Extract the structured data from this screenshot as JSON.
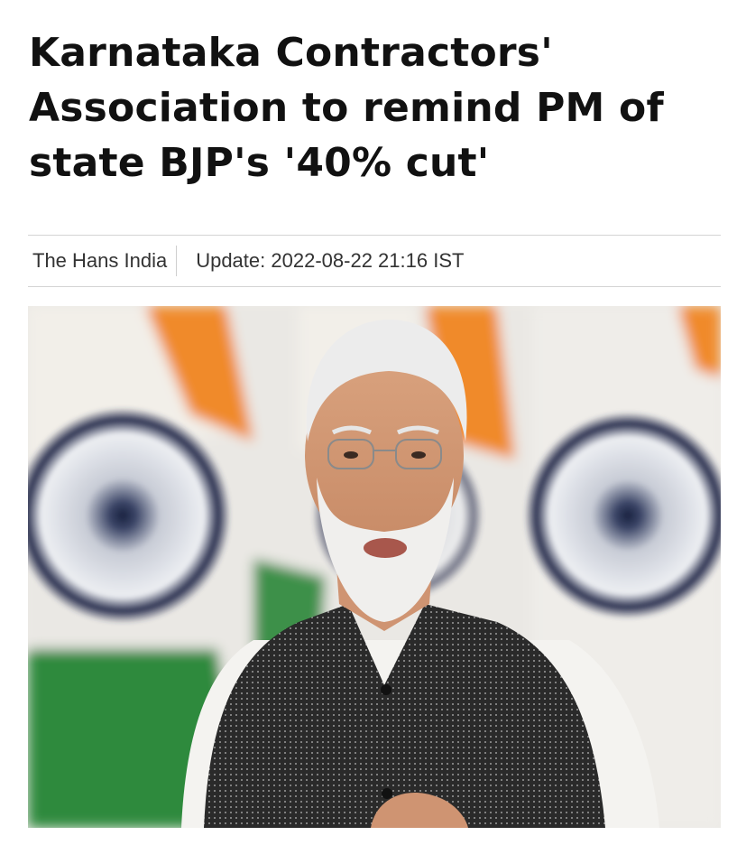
{
  "article": {
    "headline": "Karnataka Contractors' Association to remind PM of state BJP's '40% cut'",
    "source": "The Hans India",
    "update_label": "Update:",
    "update_time": "2022-08-22 21:16 IST"
  },
  "colors": {
    "saffron": "#f08a2c",
    "green": "#2f8a3c",
    "chakra": "#1f2a55",
    "vest": "#2b2b2b"
  }
}
